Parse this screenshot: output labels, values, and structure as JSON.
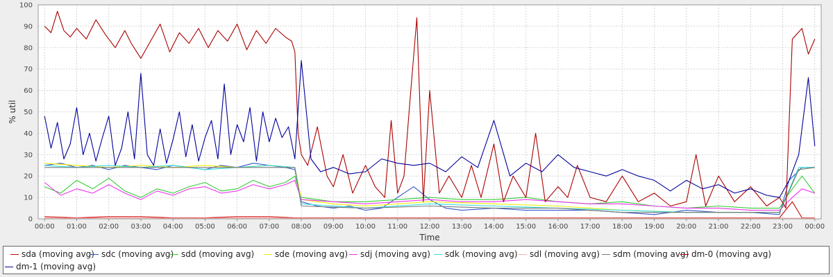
{
  "chart_data": {
    "type": "line",
    "xlabel": "Time",
    "ylabel": "% util",
    "ylim": [
      0,
      100
    ],
    "xlim": [
      -0.2,
      24.2
    ],
    "yticks": [
      0,
      10,
      20,
      30,
      40,
      50,
      60,
      70,
      80,
      90,
      100
    ],
    "xtick_labels": [
      "00:00",
      "01:00",
      "02:00",
      "03:00",
      "04:00",
      "05:00",
      "06:00",
      "07:00",
      "08:00",
      "09:00",
      "10:00",
      "11:00",
      "12:00",
      "13:00",
      "14:00",
      "15:00",
      "16:00",
      "17:00",
      "18:00",
      "19:00",
      "20:00",
      "21:00",
      "22:00",
      "23:00",
      "00:00"
    ],
    "grid": true,
    "legend_position": "bottom",
    "series": [
      {
        "name": "sda (moving avg)",
        "color": "#cc0000",
        "x": [
          0,
          1,
          2,
          3,
          4,
          5,
          6,
          7,
          7.8,
          9,
          10,
          11,
          12,
          13,
          14,
          15,
          16,
          17,
          18,
          19,
          20,
          21,
          22,
          22.9,
          23.3,
          23.6,
          24
        ],
        "y": [
          1,
          0.5,
          1,
          1,
          0.5,
          0.5,
          1,
          1,
          0.5,
          0.5,
          0.5,
          0.5,
          0.5,
          0.5,
          0.5,
          0.5,
          0.5,
          0.5,
          0.5,
          0.5,
          0.5,
          0.5,
          0.5,
          0.5,
          8,
          0.5,
          0.5
        ]
      },
      {
        "name": "sdc (moving avg)",
        "color": "#3355cc",
        "x": [
          0,
          0.5,
          1,
          1.5,
          2,
          2.5,
          3,
          3.5,
          4,
          4.5,
          5,
          5.5,
          6,
          6.5,
          7,
          7.5,
          7.8,
          8,
          8.5,
          9,
          9.5,
          10,
          10.5,
          11,
          11.5,
          12,
          12.5,
          13,
          14,
          15,
          16,
          17,
          18,
          19,
          20,
          21,
          22,
          22.9,
          23.2,
          23.6,
          24
        ],
        "y": [
          25,
          26,
          24,
          25,
          23,
          25,
          24,
          23,
          25,
          24,
          23,
          25,
          24,
          26,
          25,
          24,
          23,
          8,
          6,
          5,
          6,
          4,
          5,
          10,
          15,
          9,
          5,
          4,
          5,
          4,
          4,
          4,
          3,
          2,
          4,
          3,
          3,
          2,
          18,
          24,
          24
        ]
      },
      {
        "name": "sdd (moving avg)",
        "color": "#33cc33",
        "x": [
          0,
          0.5,
          1,
          1.5,
          2,
          2.5,
          3,
          3.5,
          4,
          4.5,
          5,
          5.5,
          6,
          6.5,
          7,
          7.5,
          7.8,
          8,
          8.5,
          9,
          10,
          11,
          12,
          13,
          14,
          15,
          16,
          17,
          18,
          19,
          20,
          21,
          22,
          22.9,
          23.2,
          23.6,
          24
        ],
        "y": [
          15,
          12,
          18,
          14,
          19,
          13,
          10,
          14,
          12,
          15,
          17,
          13,
          14,
          18,
          15,
          17,
          20,
          10,
          9,
          8,
          8,
          9,
          10,
          9,
          9,
          10,
          8,
          7,
          8,
          6,
          5,
          6,
          5,
          5,
          12,
          20,
          12
        ]
      },
      {
        "name": "sde (moving avg)",
        "color": "#eeee00",
        "x": [
          0,
          1,
          2,
          3,
          4,
          5,
          6,
          7,
          7.8,
          8,
          9,
          10,
          12,
          14,
          16,
          18,
          20,
          22,
          22.9,
          23.5,
          24
        ],
        "y": [
          26,
          25,
          24,
          25,
          24,
          25,
          24,
          25,
          24,
          9,
          7,
          6,
          8,
          7,
          6,
          4,
          3,
          3,
          3,
          23,
          24
        ]
      },
      {
        "name": "sdj (moving avg)",
        "color": "#ee33ee",
        "x": [
          0,
          0.5,
          1,
          1.5,
          2,
          2.5,
          3,
          3.5,
          4,
          4.5,
          5,
          5.5,
          6,
          6.5,
          7,
          7.5,
          7.8,
          8,
          9,
          10,
          11,
          12,
          13,
          14,
          15,
          16,
          17,
          18,
          19,
          20,
          21,
          22,
          22.9,
          23.3,
          23.6,
          24
        ],
        "y": [
          17,
          11,
          14,
          12,
          16,
          12,
          9,
          13,
          11,
          14,
          15,
          12,
          13,
          16,
          14,
          16,
          18,
          9,
          8,
          7,
          8,
          9,
          8,
          8,
          9,
          8,
          7,
          7,
          6,
          5,
          5,
          4,
          4,
          10,
          14,
          12
        ]
      },
      {
        "name": "sdk (moving avg)",
        "color": "#33dddd",
        "x": [
          0,
          1,
          2,
          3,
          4,
          5,
          6,
          7,
          7.8,
          8,
          9,
          10,
          12,
          14,
          16,
          18,
          20,
          22,
          22.9,
          23.5,
          24
        ],
        "y": [
          25,
          24,
          25,
          24,
          25,
          23,
          24,
          25,
          24,
          7,
          6,
          5,
          7,
          6,
          5,
          4,
          3,
          3,
          3,
          24,
          24
        ]
      },
      {
        "name": "sdl (moving avg)",
        "color": "#ffaaaa",
        "x": [
          0,
          2,
          4,
          6,
          7.8,
          10,
          12,
          14,
          16,
          18,
          20,
          22,
          24
        ],
        "y": [
          0.3,
          0.3,
          0.3,
          0.3,
          0.3,
          0.3,
          0.3,
          0.3,
          0.3,
          0.3,
          0.3,
          0.3,
          0.3
        ]
      },
      {
        "name": "sdm (moving avg)",
        "color": "#777777",
        "x": [
          0,
          2,
          4,
          6,
          7.8,
          8,
          10,
          12,
          14,
          16,
          18,
          20,
          22,
          22.9,
          23.5,
          24
        ],
        "y": [
          24,
          24,
          24,
          24,
          24,
          6,
          5,
          6,
          5,
          5,
          3,
          3,
          3,
          3,
          23,
          24
        ]
      },
      {
        "name": "dm-0 (moving avg)",
        "color": "#aa0000",
        "x": [
          0,
          0.2,
          0.4,
          0.6,
          0.8,
          1,
          1.3,
          1.6,
          1.9,
          2.2,
          2.5,
          2.7,
          3,
          3.3,
          3.6,
          3.9,
          4.2,
          4.5,
          4.8,
          5.1,
          5.4,
          5.7,
          6,
          6.3,
          6.6,
          6.9,
          7.2,
          7.5,
          7.7,
          7.8,
          7.9,
          8,
          8.2,
          8.5,
          8.8,
          9,
          9.3,
          9.6,
          10,
          10.3,
          10.6,
          10.8,
          11,
          11.2,
          11.4,
          11.6,
          11.8,
          12,
          12.3,
          12.6,
          13,
          13.3,
          13.6,
          14,
          14.3,
          14.6,
          15,
          15.3,
          15.6,
          16,
          16.3,
          16.6,
          17,
          17.5,
          18,
          18.5,
          19,
          19.5,
          20,
          20.3,
          20.6,
          21,
          21.5,
          22,
          22.5,
          22.9,
          23.1,
          23.3,
          23.6,
          23.8,
          24
        ],
        "y": [
          90,
          87,
          97,
          88,
          85,
          89,
          84,
          93,
          86,
          80,
          88,
          82,
          75,
          83,
          91,
          78,
          87,
          82,
          89,
          80,
          88,
          83,
          91,
          79,
          88,
          82,
          89,
          85,
          83,
          78,
          40,
          30,
          25,
          43,
          20,
          15,
          30,
          12,
          25,
          15,
          10,
          46,
          12,
          20,
          58,
          94,
          8,
          60,
          12,
          20,
          10,
          25,
          10,
          35,
          8,
          20,
          10,
          40,
          8,
          15,
          10,
          25,
          10,
          8,
          20,
          8,
          12,
          6,
          8,
          30,
          6,
          20,
          8,
          15,
          6,
          10,
          5,
          84,
          89,
          77,
          84
        ]
      },
      {
        "name": "dm-1 (moving avg)",
        "color": "#000099",
        "x": [
          0,
          0.2,
          0.4,
          0.6,
          0.8,
          1,
          1.2,
          1.4,
          1.6,
          1.8,
          2,
          2.2,
          2.4,
          2.6,
          2.8,
          3,
          3.2,
          3.4,
          3.6,
          3.8,
          4,
          4.2,
          4.4,
          4.6,
          4.8,
          5,
          5.2,
          5.4,
          5.6,
          5.8,
          6,
          6.2,
          6.4,
          6.6,
          6.8,
          7,
          7.2,
          7.4,
          7.6,
          7.8,
          8,
          8.3,
          8.6,
          9,
          9.5,
          10,
          10.5,
          11,
          11.5,
          12,
          12.5,
          13,
          13.5,
          14,
          14.5,
          15,
          15.5,
          16,
          16.5,
          17,
          17.5,
          18,
          18.5,
          19,
          19.5,
          20,
          20.5,
          21,
          21.5,
          22,
          22.5,
          22.9,
          23.2,
          23.5,
          23.8,
          24
        ],
        "y": [
          48,
          33,
          45,
          28,
          35,
          52,
          30,
          40,
          27,
          38,
          48,
          25,
          33,
          50,
          28,
          68,
          30,
          25,
          42,
          26,
          37,
          50,
          29,
          44,
          27,
          38,
          46,
          28,
          63,
          30,
          44,
          36,
          52,
          27,
          50,
          36,
          47,
          38,
          43,
          28,
          74,
          28,
          22,
          24,
          21,
          22,
          28,
          26,
          25,
          26,
          22,
          29,
          24,
          46,
          20,
          26,
          22,
          30,
          24,
          22,
          20,
          23,
          20,
          18,
          13,
          18,
          14,
          16,
          12,
          14,
          11,
          10,
          18,
          30,
          66,
          34
        ]
      }
    ]
  }
}
